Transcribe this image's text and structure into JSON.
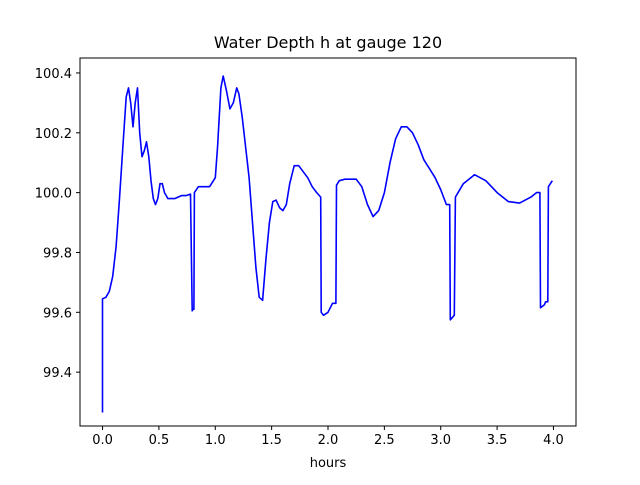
{
  "chart_data": {
    "type": "line",
    "title": "Water Depth h at gauge 120",
    "xlabel": "hours",
    "ylabel": "",
    "xlim": [
      -0.2,
      4.2
    ],
    "ylim": [
      99.22,
      100.45
    ],
    "xticks": [
      0.0,
      0.5,
      1.0,
      1.5,
      2.0,
      2.5,
      3.0,
      3.5,
      4.0
    ],
    "xtick_labels": [
      "0.0",
      "0.5",
      "1.0",
      "1.5",
      "2.0",
      "2.5",
      "3.0",
      "3.5",
      "4.0"
    ],
    "yticks": [
      99.4,
      99.6,
      99.8,
      100.0,
      100.2,
      100.4
    ],
    "ytick_labels": [
      "99.4",
      "99.6",
      "99.8",
      "100.0",
      "100.2",
      "100.4"
    ],
    "grid": false,
    "series": [
      {
        "color": "#0000ff",
        "x": [
          0.0,
          0.0,
          0.03,
          0.06,
          0.09,
          0.12,
          0.15,
          0.18,
          0.21,
          0.23,
          0.25,
          0.27,
          0.29,
          0.31,
          0.33,
          0.35,
          0.37,
          0.39,
          0.41,
          0.43,
          0.45,
          0.47,
          0.49,
          0.51,
          0.53,
          0.55,
          0.58,
          0.61,
          0.64,
          0.67,
          0.7,
          0.74,
          0.78,
          0.795,
          0.8,
          0.81,
          0.815,
          0.85,
          0.9,
          0.95,
          1.0,
          1.02,
          1.05,
          1.07,
          1.1,
          1.13,
          1.16,
          1.19,
          1.21,
          1.24,
          1.27,
          1.3,
          1.33,
          1.36,
          1.39,
          1.42,
          1.45,
          1.48,
          1.51,
          1.54,
          1.57,
          1.6,
          1.63,
          1.66,
          1.7,
          1.74,
          1.78,
          1.82,
          1.86,
          1.9,
          1.935,
          1.94,
          1.96,
          2.0,
          2.04,
          2.07,
          2.075,
          2.1,
          2.15,
          2.2,
          2.25,
          2.3,
          2.35,
          2.4,
          2.45,
          2.5,
          2.55,
          2.6,
          2.65,
          2.7,
          2.75,
          2.8,
          2.85,
          2.9,
          2.95,
          3.0,
          3.05,
          3.08,
          3.085,
          3.12,
          3.13,
          3.2,
          3.3,
          3.4,
          3.5,
          3.6,
          3.7,
          3.8,
          3.85,
          3.88,
          3.885,
          3.92,
          3.93,
          3.95,
          3.955,
          3.99
        ],
        "y": [
          99.265,
          99.645,
          99.65,
          99.67,
          99.72,
          99.82,
          99.98,
          100.15,
          100.32,
          100.35,
          100.3,
          100.22,
          100.3,
          100.35,
          100.2,
          100.12,
          100.14,
          100.17,
          100.12,
          100.04,
          99.98,
          99.96,
          99.98,
          100.03,
          100.03,
          100.0,
          99.98,
          99.98,
          99.98,
          99.985,
          99.99,
          99.99,
          99.995,
          99.605,
          99.61,
          99.61,
          100.0,
          100.02,
          100.02,
          100.02,
          100.05,
          100.15,
          100.35,
          100.39,
          100.34,
          100.28,
          100.3,
          100.35,
          100.33,
          100.25,
          100.15,
          100.05,
          99.9,
          99.75,
          99.65,
          99.64,
          99.78,
          99.9,
          99.97,
          99.975,
          99.95,
          99.94,
          99.96,
          100.03,
          100.09,
          100.09,
          100.07,
          100.05,
          100.02,
          100.0,
          99.985,
          99.6,
          99.59,
          99.6,
          99.63,
          99.63,
          100.025,
          100.04,
          100.045,
          100.045,
          100.045,
          100.02,
          99.96,
          99.92,
          99.94,
          100.0,
          100.1,
          100.18,
          100.22,
          100.22,
          100.2,
          100.16,
          100.11,
          100.08,
          100.05,
          100.01,
          99.96,
          99.96,
          99.575,
          99.59,
          99.985,
          100.03,
          100.06,
          100.04,
          100.0,
          99.97,
          99.965,
          99.985,
          100.0,
          100.0,
          99.615,
          99.625,
          99.635,
          99.635,
          100.02,
          100.04
        ]
      }
    ]
  }
}
